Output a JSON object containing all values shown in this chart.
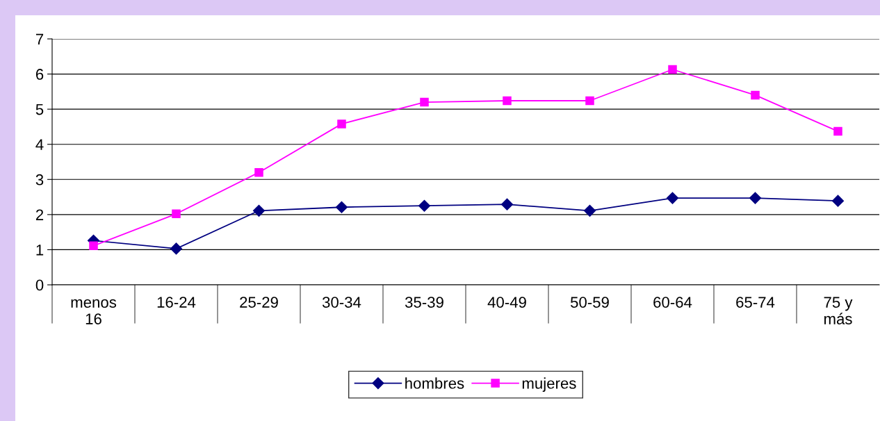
{
  "chart_data": {
    "type": "line",
    "categories": [
      "menos\n16",
      "16-24",
      "25-29",
      "30-34",
      "35-39",
      "40-49",
      "50-59",
      "60-64",
      "65-74",
      "75 y\nmás"
    ],
    "series": [
      {
        "name": "hombres",
        "color": "#000080",
        "marker": "diamond",
        "values": [
          1.26,
          1.03,
          2.11,
          2.21,
          2.25,
          2.29,
          2.11,
          2.47,
          2.47,
          2.39
        ]
      },
      {
        "name": "mujeres",
        "color": "#ff00ff",
        "marker": "square",
        "values": [
          1.11,
          2.02,
          3.2,
          4.58,
          5.2,
          5.24,
          5.24,
          6.13,
          5.4,
          4.37
        ]
      }
    ],
    "ylim": [
      0,
      7
    ],
    "yticks": [
      0,
      1,
      2,
      3,
      4,
      5,
      6,
      7
    ],
    "grid": "y",
    "legend": "bottom"
  }
}
